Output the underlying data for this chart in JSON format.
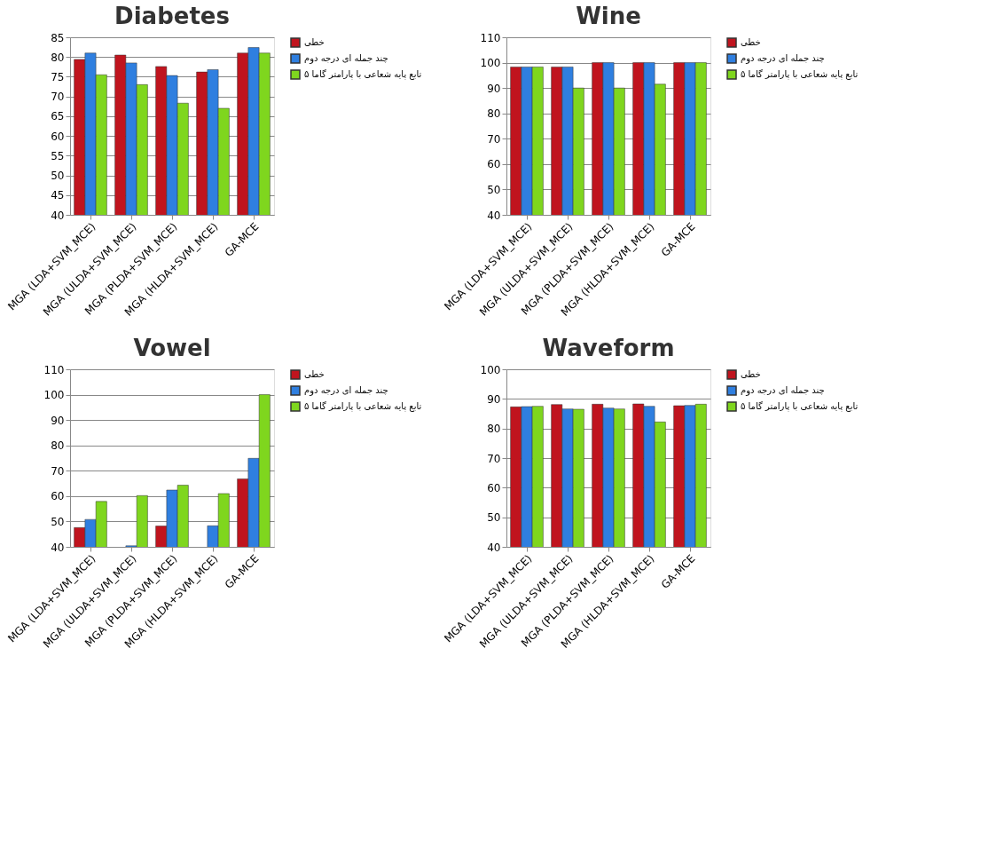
{
  "chart_data": [
    {
      "type": "bar",
      "title": "Diabetes",
      "categories": [
        "MGA (LDA+SVM_MCE)",
        "MGA (ULDA+SVM_MCE)",
        "MGA (PLDA+SVM_MCE)",
        "MGA (HLDA+SVM_MCE)",
        "GA-MCE"
      ],
      "series": [
        {
          "name": "خطی",
          "color": "#c0141e",
          "values": [
            79.4,
            80.5,
            77.6,
            76.2,
            81
          ]
        },
        {
          "name": "چند جمله ای درجه دوم",
          "color": "#2f7fe0",
          "values": [
            81,
            78.5,
            75.3,
            76.8,
            82.4
          ]
        },
        {
          "name": "تابع پایه شعاعی با پارامتر گاما ۵",
          "color": "#7fd61e",
          "values": [
            75.5,
            73,
            68.3,
            67,
            81
          ]
        }
      ],
      "ylim": [
        40,
        85
      ],
      "yticks": [
        40,
        45,
        50,
        55,
        60,
        65,
        70,
        75,
        80,
        85
      ],
      "grid": "y",
      "legend": "right"
    },
    {
      "type": "bar",
      "title": "Wine",
      "categories": [
        "MGA (LDA+SVM_MCE)",
        "MGA (ULDA+SVM_MCE)",
        "MGA (PLDA+SVM_MCE)",
        "MGA (HLDA+SVM_MCE)",
        "GA-MCE"
      ],
      "series": [
        {
          "name": "خطی",
          "color": "#c0141e",
          "values": [
            98.3,
            98.3,
            100,
            100,
            100
          ]
        },
        {
          "name": "چند جمله ای درجه دوم",
          "color": "#2f7fe0",
          "values": [
            98.3,
            98.3,
            100,
            100,
            100
          ]
        },
        {
          "name": "تابع پایه شعاعی با پارامتر گاما ۵",
          "color": "#7fd61e",
          "values": [
            98.3,
            90,
            90,
            91.5,
            100
          ]
        }
      ],
      "ylim": [
        40,
        110
      ],
      "yticks": [
        40,
        50,
        60,
        70,
        80,
        90,
        100,
        110
      ],
      "grid": "y",
      "legend": "right"
    },
    {
      "type": "bar",
      "title": "Vowel",
      "categories": [
        "MGA (LDA+SVM_MCE)",
        "MGA (ULDA+SVM_MCE)",
        "MGA (PLDA+SVM_MCE)",
        "MGA (HLDA+SVM_MCE)",
        "GA-MCE"
      ],
      "series": [
        {
          "name": "خطی",
          "color": "#c0141e",
          "values": [
            47.6,
            null,
            48.2,
            null,
            66.8
          ]
        },
        {
          "name": "چند جمله ای درجه دوم",
          "color": "#2f7fe0",
          "values": [
            50.8,
            40.4,
            62.4,
            48.3,
            74.9
          ]
        },
        {
          "name": "تابع پایه شعاعی با پارامتر گاما ۵",
          "color": "#7fd61e",
          "values": [
            57.9,
            60.2,
            64.3,
            61,
            100
          ]
        }
      ],
      "ylim": [
        40,
        110
      ],
      "yticks": [
        40,
        50,
        60,
        70,
        80,
        90,
        100,
        110
      ],
      "grid": "y",
      "legend": "right"
    },
    {
      "type": "bar",
      "title": "Waveform",
      "categories": [
        "MGA (LDA+SVM_MCE)",
        "MGA (ULDA+SVM_MCE)",
        "MGA (PLDA+SVM_MCE)",
        "MGA (HLDA+SVM_MCE)",
        "GA-MCE"
      ],
      "series": [
        {
          "name": "خطی",
          "color": "#c0141e",
          "values": [
            87.3,
            88.1,
            88.2,
            88.3,
            87.7
          ]
        },
        {
          "name": "چند جمله ای درجه دوم",
          "color": "#2f7fe0",
          "values": [
            87.4,
            86.6,
            86.9,
            87.5,
            87.8
          ]
        },
        {
          "name": "تابع پایه شعاعی با پارامتر گاما ۵",
          "color": "#7fd61e",
          "values": [
            87.5,
            86.5,
            86.6,
            82.2,
            88.2
          ]
        }
      ],
      "ylim": [
        40,
        100
      ],
      "yticks": [
        40,
        50,
        60,
        70,
        80,
        90,
        100
      ],
      "grid": "y",
      "legend": "right"
    }
  ]
}
